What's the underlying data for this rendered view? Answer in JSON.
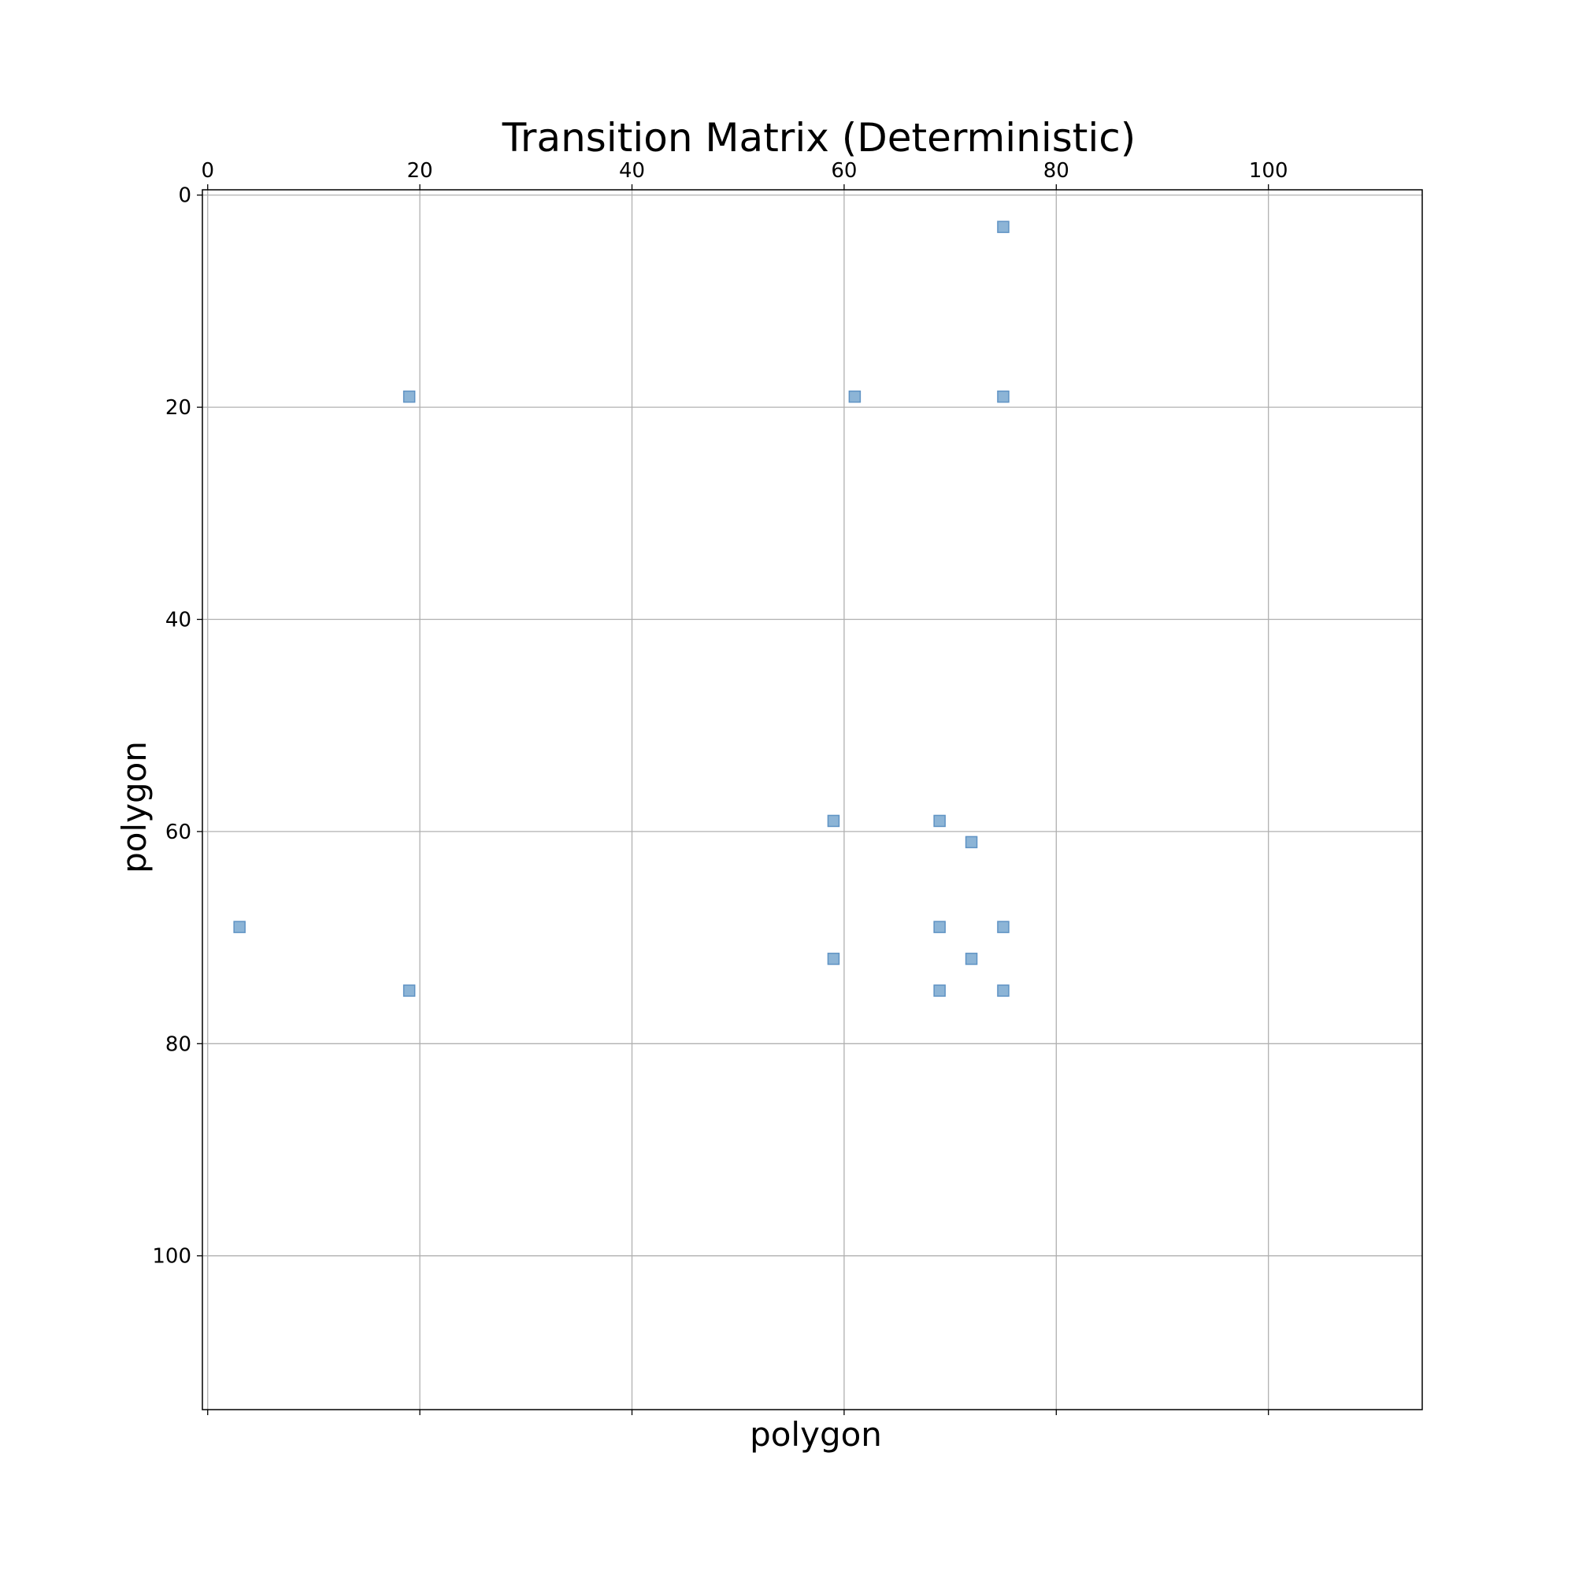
{
  "chart_data": {
    "type": "scatter",
    "title": "Transition Matrix (Deterministic)",
    "xlabel": "polygon",
    "ylabel": "polygon",
    "x_axis_position": "top",
    "y_axis_inverted": true,
    "xlim": [
      -0.5,
      114.5
    ],
    "ylim": [
      114.5,
      -0.5
    ],
    "xticks": [
      0,
      20,
      40,
      60,
      80,
      100
    ],
    "yticks": [
      0,
      20,
      40,
      60,
      80,
      100
    ],
    "grid": true,
    "marker": "square",
    "point_color": "#8cb4d6",
    "point_edge_color": "#5f93c4",
    "points": [
      {
        "x": 75,
        "y": 3
      },
      {
        "x": 19,
        "y": 19
      },
      {
        "x": 61,
        "y": 19
      },
      {
        "x": 75,
        "y": 19
      },
      {
        "x": 59,
        "y": 59
      },
      {
        "x": 69,
        "y": 59
      },
      {
        "x": 72,
        "y": 61
      },
      {
        "x": 3,
        "y": 69
      },
      {
        "x": 69,
        "y": 69
      },
      {
        "x": 75,
        "y": 69
      },
      {
        "x": 59,
        "y": 72
      },
      {
        "x": 72,
        "y": 72
      },
      {
        "x": 19,
        "y": 75
      },
      {
        "x": 69,
        "y": 75
      },
      {
        "x": 75,
        "y": 75
      }
    ]
  }
}
